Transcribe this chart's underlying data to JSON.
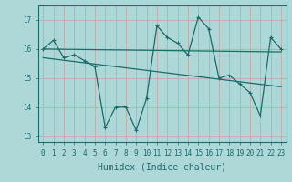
{
  "xlabel": "Humidex (Indice chaleur)",
  "bg_color": "#aed8d8",
  "grid_color": "#c8a0a0",
  "line_color": "#1a6b6b",
  "x_values": [
    0,
    1,
    2,
    3,
    4,
    5,
    6,
    7,
    8,
    9,
    10,
    11,
    12,
    13,
    14,
    15,
    16,
    17,
    18,
    19,
    20,
    21,
    22,
    23
  ],
  "series1": [
    16.0,
    16.3,
    15.7,
    15.8,
    15.6,
    15.4,
    13.3,
    14.0,
    14.0,
    13.2,
    14.3,
    16.8,
    16.4,
    16.2,
    15.8,
    17.1,
    16.7,
    15.0,
    15.1,
    14.8,
    14.5,
    13.7,
    16.4,
    16.0
  ],
  "trend1": [
    16.0,
    15.9
  ],
  "trend2": [
    15.7,
    14.7
  ],
  "ylim": [
    12.8,
    17.5
  ],
  "yticks": [
    13,
    14,
    15,
    16,
    17
  ],
  "xticks": [
    0,
    1,
    2,
    3,
    4,
    5,
    6,
    7,
    8,
    9,
    10,
    11,
    12,
    13,
    14,
    15,
    16,
    17,
    18,
    19,
    20,
    21,
    22,
    23
  ],
  "tick_fontsize": 5.5,
  "xlabel_fontsize": 7
}
